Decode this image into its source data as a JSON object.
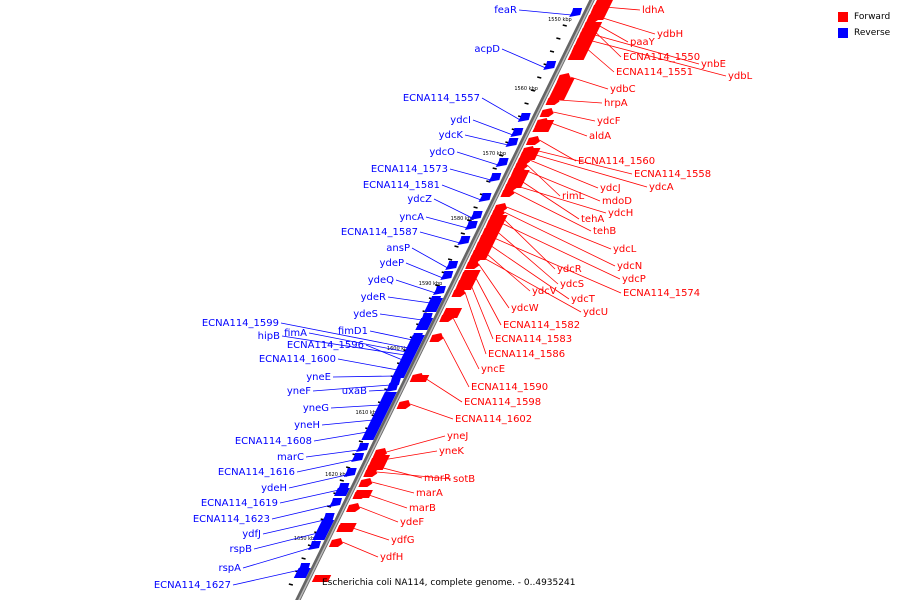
{
  "legend": {
    "forward": {
      "label": "Forward",
      "color": "#ff0000"
    },
    "reverse": {
      "label": "Reverse",
      "color": "#0000ff"
    }
  },
  "caption": "Escherichia coli NA114, complete genome. - 0..4935241",
  "ticks": [
    "1550 kbp",
    "1560 kbp",
    "1570 kbp",
    "1580 kbp",
    "1590 kbp",
    "1600 kbp",
    "1610 kbp",
    "1620 kbp",
    "1630 kbp"
  ],
  "reverse_genes": [
    "feaR",
    "acpD",
    "ECNA114_1557",
    "ydcI",
    "ydcK",
    "ydcO",
    "ECNA114_1573",
    "ECNA114_1581",
    "ydcZ",
    "yncA",
    "ECNA114_1587",
    "ansP",
    "ydeP",
    "ydeQ",
    "ydeR",
    "ydeS",
    "fimD1",
    "ECNA114_1599",
    "fimA",
    "hipB",
    "ECNA114_1596",
    "ECNA114_1600",
    "yneE",
    "yneF",
    "uxaB",
    "yneG",
    "yneH",
    "ECNA114_1608",
    "marC",
    "ECNA114_1616",
    "ydeH",
    "ECNA114_1619",
    "ECNA114_1623",
    "ydfJ",
    "rspB",
    "rspA",
    "ECNA114_1627"
  ],
  "forward_genes": [
    "ldhA",
    "ydbH",
    "paaY",
    "ECNA114_1550",
    "ynbE",
    "ydbL",
    "ECNA114_1551",
    "ydbC",
    "hrpA",
    "ydcF",
    "aldA",
    "ECNA114_1560",
    "ECNA114_1558",
    "ydcA",
    "ydcJ",
    "rimL",
    "mdoD",
    "tehA",
    "ydcH",
    "tehB",
    "ydcL",
    "ydcN",
    "ydcR",
    "ydcP",
    "ydcS",
    "ECNA114_1574",
    "ydcT",
    "ydcV",
    "ydcU",
    "ydcW",
    "ECNA114_1582",
    "ECNA114_1583",
    "ECNA114_1586",
    "yncE",
    "ECNA114_1590",
    "ECNA114_1598",
    "ECNA114_1602",
    "yneJ",
    "yneK",
    "marR",
    "sotB",
    "marA",
    "marB",
    "ydeF",
    "ydfG",
    "ydfH"
  ]
}
